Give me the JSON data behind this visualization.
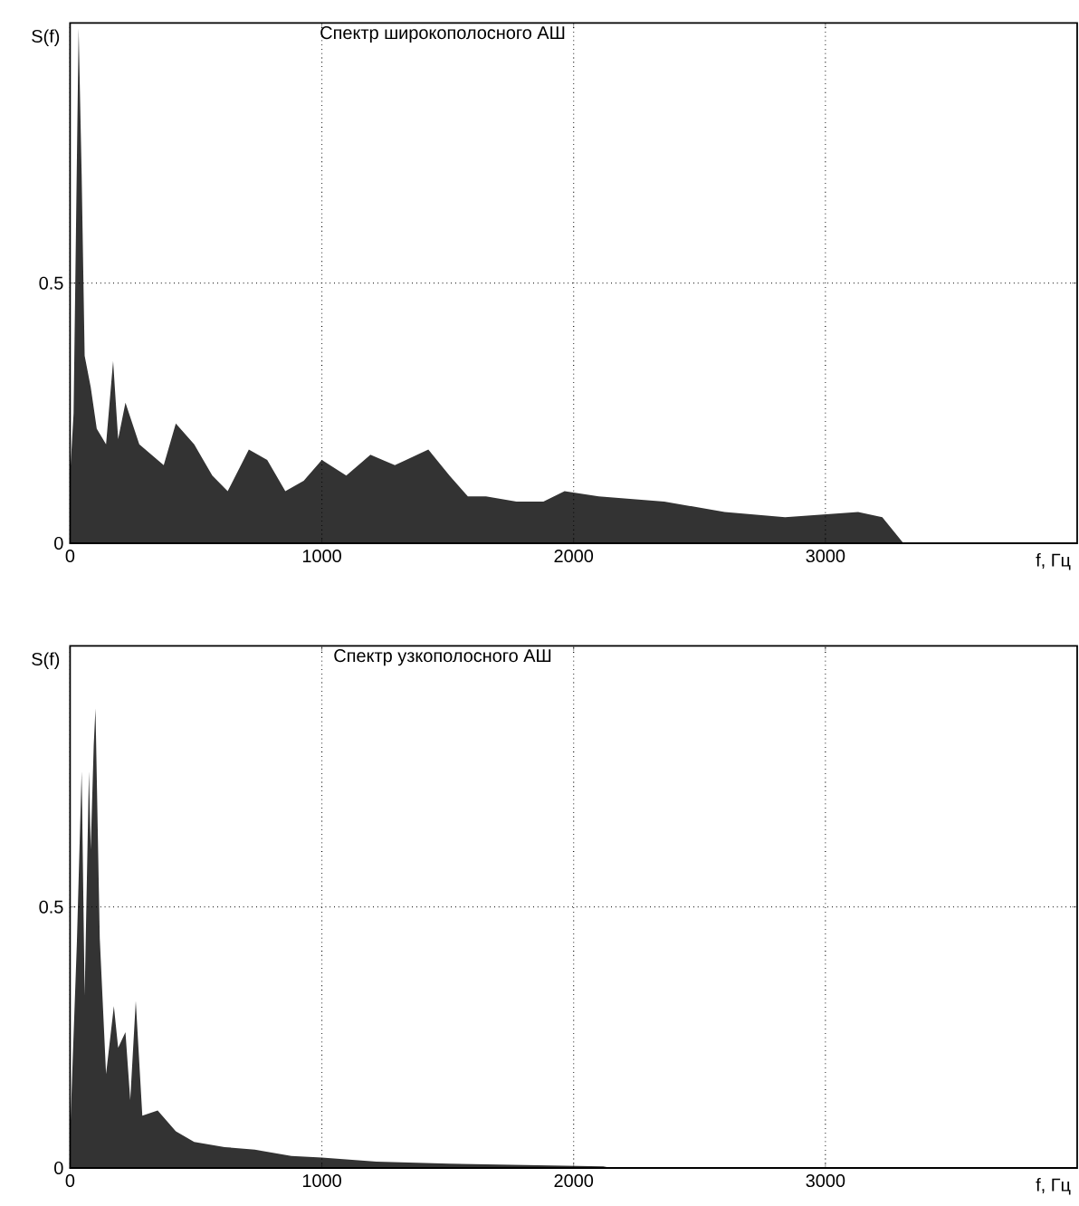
{
  "chart_data": [
    {
      "type": "area",
      "title": "Спектр широкополосного АШ",
      "xlabel": "f, Гц",
      "ylabel": "S(f)",
      "color": "#333333",
      "grid": true,
      "xlim": [
        0,
        4000
      ],
      "ylim": [
        0,
        1
      ],
      "xticks": [
        0,
        1000,
        2000,
        3000
      ],
      "yticks": [
        0,
        0.5
      ],
      "x": [
        0,
        14,
        34,
        46,
        58,
        82,
        106,
        143,
        171,
        191,
        220,
        275,
        372,
        420,
        493,
        565,
        626,
        710,
        783,
        855,
        928,
        1000,
        1097,
        1193,
        1290,
        1423,
        1507,
        1580,
        1652,
        1773,
        1880,
        1964,
        2100,
        2360,
        2600,
        2840,
        3130,
        3226,
        3310,
        4000
      ],
      "values": [
        0.13,
        0.25,
        0.99,
        0.71,
        0.36,
        0.3,
        0.22,
        0.19,
        0.35,
        0.2,
        0.27,
        0.19,
        0.15,
        0.23,
        0.19,
        0.13,
        0.1,
        0.18,
        0.16,
        0.1,
        0.12,
        0.16,
        0.13,
        0.17,
        0.15,
        0.18,
        0.13,
        0.09,
        0.09,
        0.08,
        0.08,
        0.1,
        0.09,
        0.08,
        0.06,
        0.05,
        0.06,
        0.05,
        0,
        0
      ]
    },
    {
      "type": "area",
      "title": "Спектр узкополосного АШ",
      "xlabel": "f, Гц",
      "ylabel": "S(f)",
      "color": "#333333",
      "grid": true,
      "xlim": [
        0,
        4000
      ],
      "ylim": [
        0,
        1
      ],
      "xticks": [
        0,
        1000,
        2000,
        3000
      ],
      "yticks": [
        0,
        0.5
      ],
      "x": [
        0,
        10,
        27,
        46,
        58,
        75,
        82,
        94,
        101,
        118,
        143,
        174,
        191,
        220,
        239,
        261,
        287,
        348,
        420,
        493,
        614,
        734,
        879,
        1000,
        1217,
        1507,
        2118,
        2150,
        4000
      ],
      "values": [
        0.06,
        0.2,
        0.43,
        0.76,
        0.33,
        0.76,
        0.61,
        0.81,
        0.88,
        0.44,
        0.18,
        0.31,
        0.23,
        0.26,
        0.13,
        0.32,
        0.1,
        0.11,
        0.07,
        0.05,
        0.04,
        0.035,
        0.023,
        0.02,
        0.012,
        0.008,
        0.003,
        0,
        0
      ]
    }
  ]
}
